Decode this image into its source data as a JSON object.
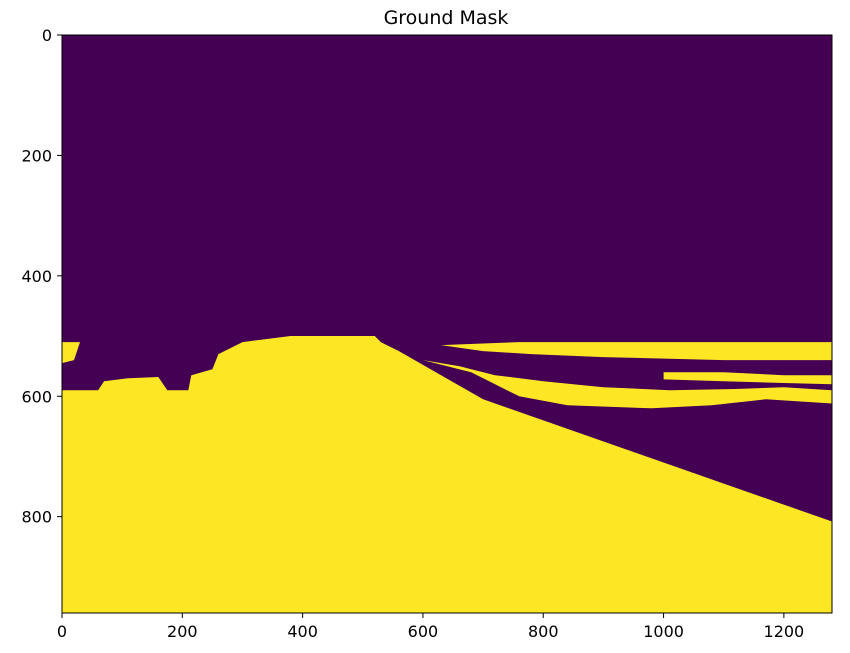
{
  "chart_data": {
    "type": "heatmap",
    "title": "Ground Mask",
    "xlabel": "",
    "ylabel": "",
    "xlim": [
      0,
      1280
    ],
    "ylim": [
      960,
      0
    ],
    "x_ticks": [
      0,
      200,
      400,
      600,
      800,
      1000,
      1200
    ],
    "y_ticks": [
      0,
      200,
      400,
      600,
      800
    ],
    "colormap": "viridis",
    "classes": [
      {
        "value": 0,
        "color": "#440154"
      },
      {
        "value": 1,
        "color": "#fde725"
      }
    ],
    "regions": [
      {
        "value": 1,
        "polygon": [
          [
            0,
            960
          ],
          [
            0,
            590
          ],
          [
            60,
            590
          ],
          [
            70,
            575
          ],
          [
            110,
            570
          ],
          [
            160,
            568
          ],
          [
            175,
            590
          ],
          [
            210,
            590
          ],
          [
            215,
            565
          ],
          [
            250,
            555
          ],
          [
            260,
            530
          ],
          [
            300,
            510
          ],
          [
            380,
            500
          ],
          [
            520,
            500
          ],
          [
            530,
            510
          ],
          [
            560,
            525
          ],
          [
            700,
            605
          ],
          [
            1280,
            808
          ],
          [
            1280,
            960
          ]
        ]
      },
      {
        "value": 1,
        "polygon": [
          [
            0,
            510
          ],
          [
            30,
            510
          ],
          [
            20,
            540
          ],
          [
            0,
            545
          ]
        ]
      },
      {
        "value": 1,
        "polygon": [
          [
            630,
            515
          ],
          [
            760,
            510
          ],
          [
            1280,
            510
          ],
          [
            1280,
            540
          ],
          [
            1100,
            540
          ],
          [
            900,
            535
          ],
          [
            780,
            530
          ],
          [
            700,
            525
          ]
        ]
      },
      {
        "value": 1,
        "polygon": [
          [
            600,
            540
          ],
          [
            680,
            560
          ],
          [
            760,
            600
          ],
          [
            840,
            615
          ],
          [
            980,
            620
          ],
          [
            1080,
            615
          ],
          [
            1170,
            605
          ],
          [
            1280,
            612
          ],
          [
            1280,
            590
          ],
          [
            1200,
            585
          ],
          [
            1120,
            588
          ],
          [
            1010,
            590
          ],
          [
            900,
            585
          ],
          [
            800,
            575
          ],
          [
            720,
            565
          ],
          [
            660,
            550
          ]
        ]
      },
      {
        "value": 1,
        "polygon": [
          [
            1000,
            560
          ],
          [
            1100,
            560
          ],
          [
            1200,
            565
          ],
          [
            1280,
            565
          ],
          [
            1280,
            580
          ],
          [
            1200,
            578
          ],
          [
            1100,
            575
          ],
          [
            1000,
            572
          ]
        ]
      }
    ]
  }
}
